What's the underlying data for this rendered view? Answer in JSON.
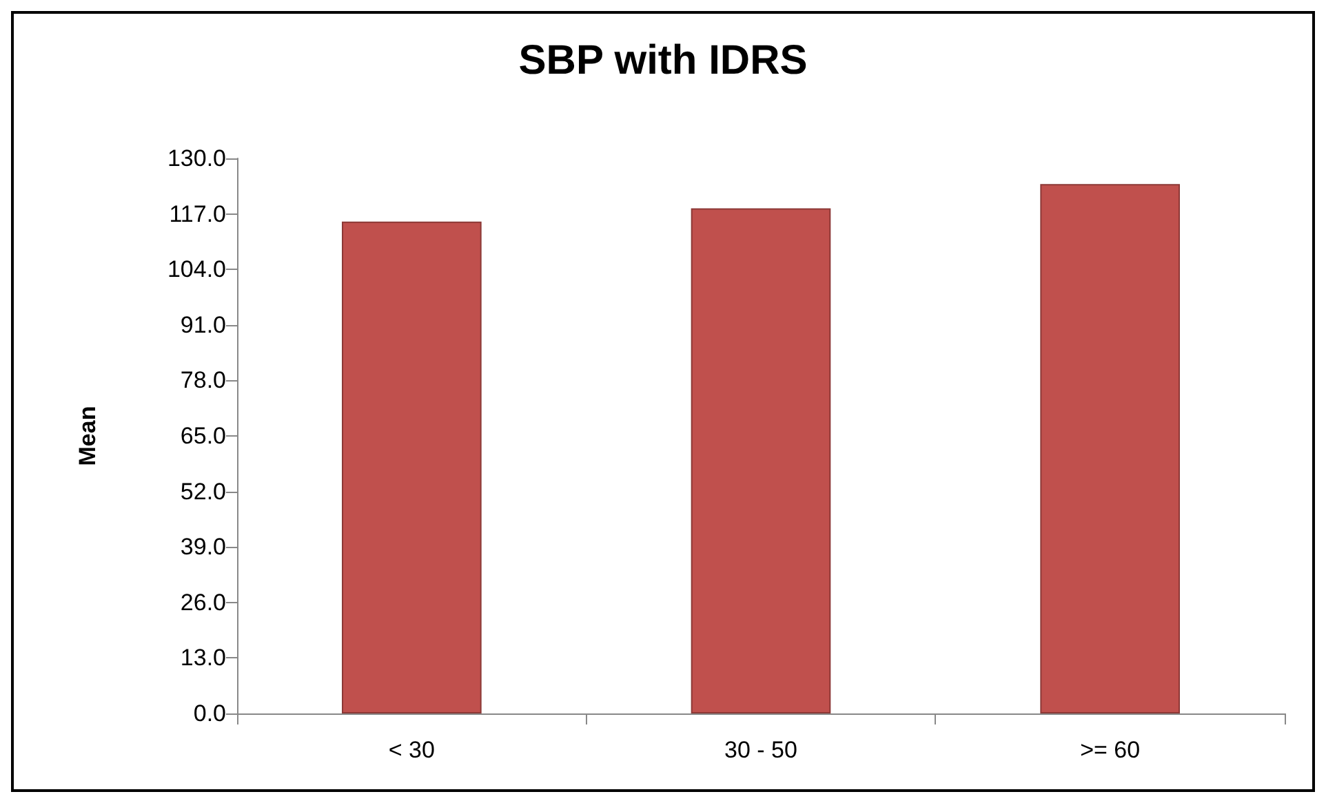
{
  "chart_data": {
    "type": "bar",
    "title": "SBP with IDRS",
    "ylabel": "Mean",
    "categories": [
      "< 30",
      "30 - 50",
      ">= 60"
    ],
    "values": [
      115.2,
      118.3,
      124.0
    ],
    "color": "#c0504d",
    "ylim": [
      0,
      130
    ],
    "yticks": [
      {
        "value": 0,
        "label": "0.0"
      },
      {
        "value": 13,
        "label": "13.0"
      },
      {
        "value": 26,
        "label": "26.0"
      },
      {
        "value": 39,
        "label": "39.0"
      },
      {
        "value": 52,
        "label": "52.0"
      },
      {
        "value": 65,
        "label": "65.0"
      },
      {
        "value": 78,
        "label": "78.0"
      },
      {
        "value": 91,
        "label": "91.0"
      },
      {
        "value": 104,
        "label": "104.0"
      },
      {
        "value": 117,
        "label": "117.0"
      },
      {
        "value": 130,
        "label": "130.0"
      }
    ],
    "grid": false
  }
}
